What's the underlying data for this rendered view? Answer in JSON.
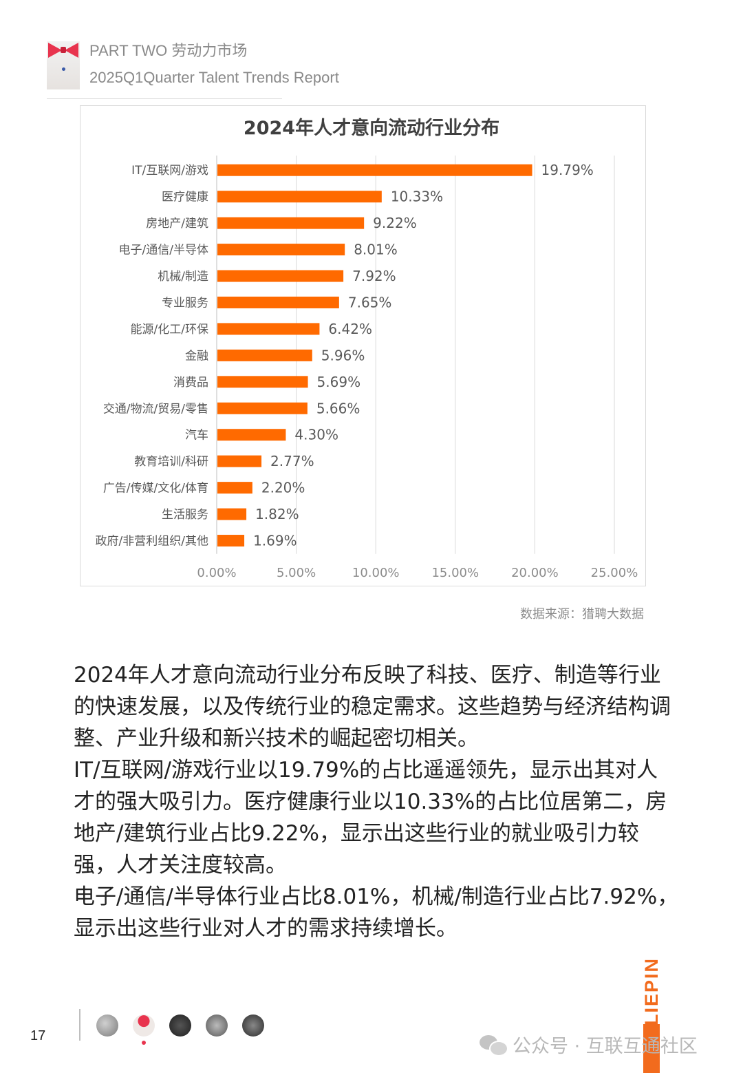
{
  "header": {
    "line1": "PART TWO 劳动力市场",
    "line2": "2025Q1Quarter Talent Trends Report"
  },
  "chart_data": {
    "type": "bar",
    "orientation": "horizontal",
    "title": "2024年人才意向流动行业分布",
    "categories": [
      "IT/互联网/游戏",
      "医疗健康",
      "房地产/建筑",
      "电子/通信/半导体",
      "机械/制造",
      "专业服务",
      "能源/化工/环保",
      "金融",
      "消费品",
      "交通/物流/贸易/零售",
      "汽车",
      "教育培训/科研",
      "广告/传媒/文化/体育",
      "生活服务",
      "政府/非营利组织/其他"
    ],
    "values": [
      19.79,
      10.33,
      9.22,
      8.01,
      7.92,
      7.65,
      6.42,
      5.96,
      5.69,
      5.66,
      4.3,
      2.77,
      2.2,
      1.82,
      1.69
    ],
    "value_labels": [
      "19.79%",
      "10.33%",
      "9.22%",
      "8.01%",
      "7.92%",
      "7.65%",
      "6.42%",
      "5.96%",
      "5.69%",
      "5.66%",
      "4.30%",
      "2.77%",
      "2.20%",
      "1.82%",
      "1.69%"
    ],
    "xlim": [
      0,
      25
    ],
    "xticks": [
      "0.00%",
      "5.00%",
      "10.00%",
      "15.00%",
      "20.00%",
      "25.00%"
    ],
    "grid": "vertical",
    "bar_color": "#ff6a00"
  },
  "source": "数据来源：猎聘大数据",
  "body": {
    "p1": "2024年人才意向流动行业分布反映了科技、医疗、制造等行业的快速发展，以及传统行业的稳定需求。这些趋势与经济结构调整、产业升级和新兴技术的崛起密切相关。",
    "p2": "IT/互联网/游戏行业以19.79%的占比遥遥领先，显示出其对人才的强大吸引力。医疗健康行业以10.33%的占比位居第二，房地产/建筑行业占比9.22%，显示出这些行业的就业吸引力较强，人才关注度较高。",
    "p3": "电子/通信/半导体行业占比8.01%，机械/制造行业占比7.92%，显示出这些行业对人才的需求持续增长。"
  },
  "footer": {
    "page_number": "17",
    "brand": "LIEPIN",
    "watermark": "公众号 · 互联互通社区"
  }
}
